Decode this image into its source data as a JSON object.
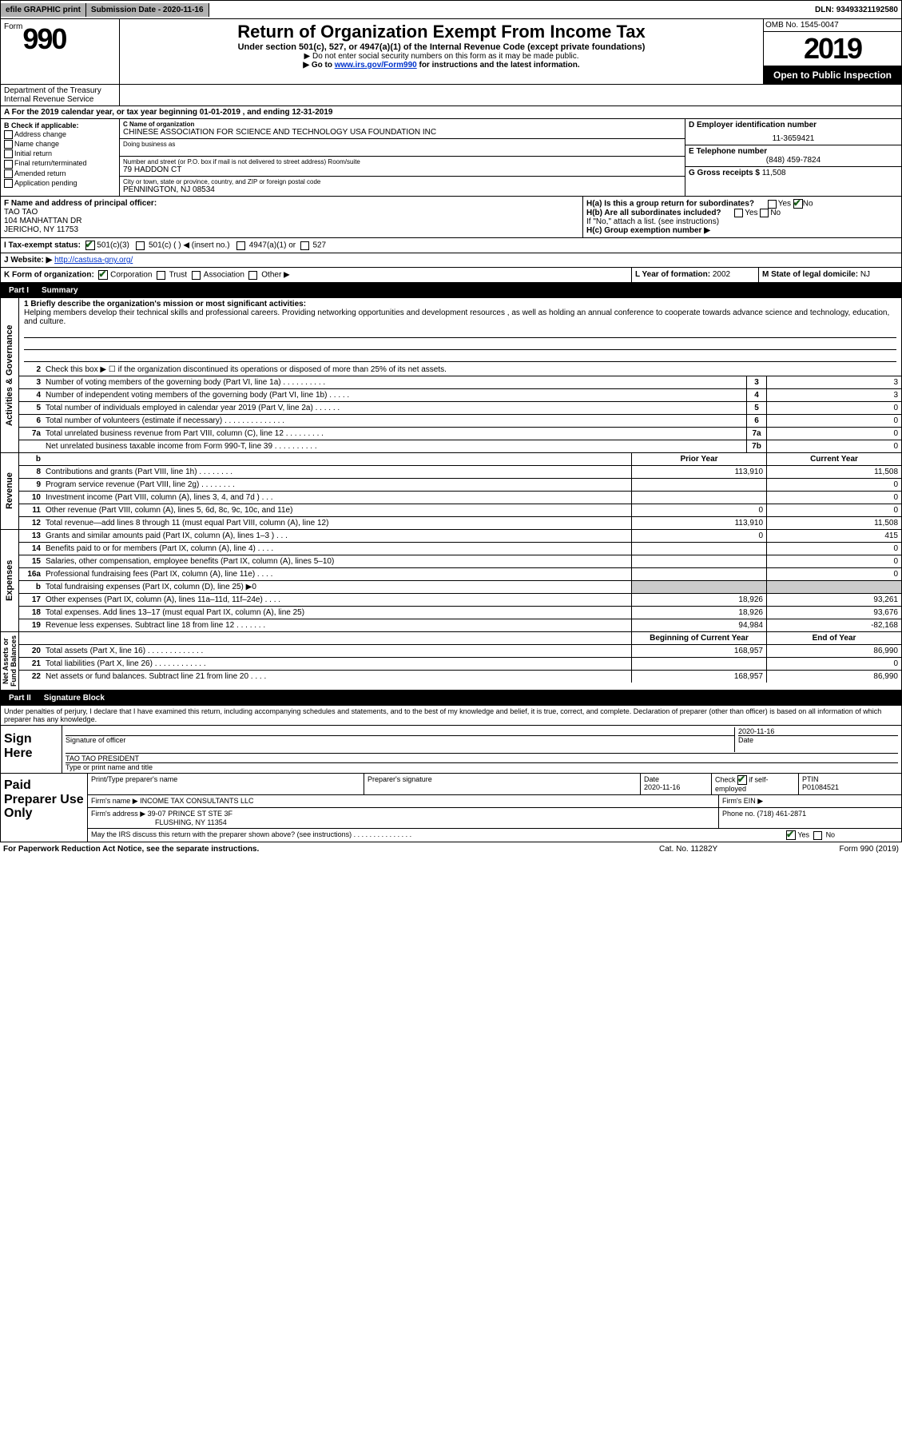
{
  "topbar": {
    "efile": "efile GRAPHIC print",
    "subdate_label": "Submission Date - ",
    "subdate": "2020-11-16",
    "dln_label": "DLN: ",
    "dln": "93493321192580"
  },
  "header": {
    "form_label": "Form",
    "form_num": "990",
    "dept": "Department of the Treasury\nInternal Revenue Service",
    "title": "Return of Organization Exempt From Income Tax",
    "sub": "Under section 501(c), 527, or 4947(a)(1) of the Internal Revenue Code (except private foundations)",
    "note1": "▶ Do not enter social security numbers on this form as it may be made public.",
    "note2_pre": "▶ Go to ",
    "note2_link": "www.irs.gov/Form990",
    "note2_post": " for instructions and the latest information.",
    "omb": "OMB No. 1545-0047",
    "year": "2019",
    "inspect": "Open to Public Inspection"
  },
  "periodA": "For the 2019 calendar year, or tax year beginning 01-01-2019   , and ending 12-31-2019",
  "boxB": {
    "label": "B Check if applicable:",
    "items": [
      "Address change",
      "Name change",
      "Initial return",
      "Final return/terminated",
      "Amended return",
      "Application pending"
    ]
  },
  "boxC": {
    "name_label": "C Name of organization",
    "name": "CHINESE ASSOCIATION FOR SCIENCE AND TECHNOLOGY USA FOUNDATION INC",
    "dba_label": "Doing business as",
    "dba": "",
    "street_label": "Number and street (or P.O. box if mail is not delivered to street address)        Room/suite",
    "street": "79 HADDON CT",
    "city_label": "City or town, state or province, country, and ZIP or foreign postal code",
    "city": "PENNINGTON, NJ  08534"
  },
  "boxD": {
    "d_label": "D Employer identification number",
    "ein": "11-3659421",
    "e_label": "E Telephone number",
    "phone": "(848) 459-7824",
    "g_label": "G Gross receipts $ ",
    "g": "11,508"
  },
  "secF": {
    "f_label": "F  Name and address of principal officer:",
    "name": "TAO TAO",
    "addr1": "104 MANHATTAN DR",
    "addr2": "JERICHO, NY  11753",
    "ha": "H(a)  Is this a group return for subordinates?",
    "ha_yes": "Yes",
    "ha_no": "No",
    "hb": "H(b)  Are all subordinates included?",
    "hb_note": "If \"No,\" attach a list. (see instructions)",
    "hc": "H(c)  Group exemption number ▶"
  },
  "rowI": {
    "label": "I   Tax-exempt status:",
    "c3": "501(c)(3)",
    "c": "501(c) (  ) ◀ (insert no.)",
    "a1": "4947(a)(1) or",
    "s527": "527"
  },
  "rowJ": {
    "label": "J   Website: ▶  ",
    "url": "http://castusa-gny.org/"
  },
  "rowK": {
    "label": "K Form of organization:",
    "corp": "Corporation",
    "trust": "Trust",
    "assoc": "Association",
    "other": "Other ▶",
    "L": "L Year of formation: ",
    "Lval": "2002",
    "M": "M State of legal domicile: ",
    "Mval": "NJ"
  },
  "part1": {
    "num": "Part I",
    "title": "Summary"
  },
  "summary": {
    "q1_label": "1  Briefly describe the organization's mission or most significant activities:",
    "mission": "Helping members develop their technical skills and professional careers. Providing networking opportunities and development resources , as well as holding an annual conference to cooperate towards advance science and technology, education, and culture.",
    "q2": "Check this box ▶ ☐  if the organization discontinued its operations or disposed of more than 25% of its net assets.",
    "rows": [
      {
        "n": "3",
        "d": "Number of voting members of the governing body (Part VI, line 1a)  .  .  .  .  .  .  .  .  .  .",
        "box": "3",
        "v": "3"
      },
      {
        "n": "4",
        "d": "Number of independent voting members of the governing body (Part VI, line 1b)  .  .  .  .  .",
        "box": "4",
        "v": "3"
      },
      {
        "n": "5",
        "d": "Total number of individuals employed in calendar year 2019 (Part V, line 2a)  .  .  .  .  .  .",
        "box": "5",
        "v": "0"
      },
      {
        "n": "6",
        "d": "Total number of volunteers (estimate if necessary)   .  .  .  .  .  .  .  .  .  .  .  .  .  .",
        "box": "6",
        "v": "0"
      },
      {
        "n": "7a",
        "d": "Total unrelated business revenue from Part VIII, column (C), line 12  .  .  .  .  .  .  .  .  .",
        "box": "7a",
        "v": "0"
      },
      {
        "n": "",
        "d": "Net unrelated business taxable income from Form 990-T, line 39   .  .  .  .  .  .  .  .  .  .",
        "box": "7b",
        "v": "0"
      }
    ]
  },
  "revenue": {
    "header_prior": "Prior Year",
    "header_curr": "Current Year",
    "rows": [
      {
        "n": "8",
        "d": "Contributions and grants (Part VIII, line 1h)  .  .  .  .  .  .  .  .",
        "p": "113,910",
        "c": "11,508"
      },
      {
        "n": "9",
        "d": "Program service revenue (Part VIII, line 2g)   .  .  .  .  .  .  .  .",
        "p": "",
        "c": "0"
      },
      {
        "n": "10",
        "d": "Investment income (Part VIII, column (A), lines 3, 4, and 7d )  .  .  .",
        "p": "",
        "c": "0"
      },
      {
        "n": "11",
        "d": "Other revenue (Part VIII, column (A), lines 5, 6d, 8c, 9c, 10c, and 11e)",
        "p": "0",
        "c": "0"
      },
      {
        "n": "12",
        "d": "Total revenue—add lines 8 through 11 (must equal Part VIII, column (A), line 12)",
        "p": "113,910",
        "c": "11,508"
      }
    ]
  },
  "expenses": {
    "rows": [
      {
        "n": "13",
        "d": "Grants and similar amounts paid (Part IX, column (A), lines 1–3 )  .  .  .",
        "p": "0",
        "c": "415"
      },
      {
        "n": "14",
        "d": "Benefits paid to or for members (Part IX, column (A), line 4)  .  .  .  .",
        "p": "",
        "c": "0"
      },
      {
        "n": "15",
        "d": "Salaries, other compensation, employee benefits (Part IX, column (A), lines 5–10)",
        "p": "",
        "c": "0"
      },
      {
        "n": "16a",
        "d": "Professional fundraising fees (Part IX, column (A), line 11e)  .  .  .  .",
        "p": "",
        "c": "0"
      },
      {
        "n": "b",
        "d": "Total fundraising expenses (Part IX, column (D), line 25) ▶0",
        "p": "shade",
        "c": "shade"
      },
      {
        "n": "17",
        "d": "Other expenses (Part IX, column (A), lines 11a–11d, 11f–24e)  .  .  .  .",
        "p": "18,926",
        "c": "93,261"
      },
      {
        "n": "18",
        "d": "Total expenses. Add lines 13–17 (must equal Part IX, column (A), line 25)",
        "p": "18,926",
        "c": "93,676"
      },
      {
        "n": "19",
        "d": "Revenue less expenses. Subtract line 18 from line 12  .  .  .  .  .  .  .",
        "p": "94,984",
        "c": "-82,168"
      }
    ]
  },
  "netassets": {
    "header_beg": "Beginning of Current Year",
    "header_end": "End of Year",
    "rows": [
      {
        "n": "20",
        "d": "Total assets (Part X, line 16)  .  .  .  .  .  .  .  .  .  .  .  .  .",
        "p": "168,957",
        "c": "86,990"
      },
      {
        "n": "21",
        "d": "Total liabilities (Part X, line 26)  .  .  .  .  .  .  .  .  .  .  .  .",
        "p": "",
        "c": "0"
      },
      {
        "n": "22",
        "d": "Net assets or fund balances. Subtract line 21 from line 20   .  .  .  .",
        "p": "168,957",
        "c": "86,990"
      }
    ]
  },
  "sidelabels": {
    "ag": "Activities & Governance",
    "rev": "Revenue",
    "exp": "Expenses",
    "net": "Net Assets or\nFund Balances"
  },
  "part2": {
    "num": "Part II",
    "title": "Signature Block"
  },
  "sig": {
    "penalty": "Under penalties of perjury, I declare that I have examined this return, including accompanying schedules and statements, and to the best of my knowledge and belief, it is true, correct, and complete. Declaration of preparer (other than officer) is based on all information of which preparer has any knowledge.",
    "sign_here": "Sign Here",
    "officer_sig": "Signature of officer",
    "date": "2020-11-16",
    "date_label": "Date",
    "name": "TAO TAO PRESIDENT",
    "name_label": "Type or print name and title"
  },
  "prep": {
    "label": "Paid Preparer Use Only",
    "print_label": "Print/Type preparer's name",
    "sig_label": "Preparer's signature",
    "date_label": "Date",
    "date": "2020-11-16",
    "check_label": "Check ",
    "check_label2": " if self-employed",
    "ptin_label": "PTIN",
    "ptin": "P01084521",
    "firm_label": "Firm's name    ▶",
    "firm": "INCOME TAX CONSULTANTS LLC",
    "ein_label": "Firm's EIN ▶",
    "addr_label": "Firm's address ▶",
    "addr": "39-07 PRINCE ST STE 3F",
    "addr2": "FLUSHING, NY  11354",
    "phone_label": "Phone no. ",
    "phone": "(718) 461-2871",
    "discuss": "May the IRS discuss this return with the preparer shown above? (see instructions)  .  .  .  .  .  .  .  .  .  .  .  .  .  .  .",
    "yes": "Yes",
    "no": "No"
  },
  "footer": {
    "l": "For Paperwork Reduction Act Notice, see the separate instructions.",
    "c": "Cat. No. 11282Y",
    "r": "Form 990 (2019)"
  }
}
